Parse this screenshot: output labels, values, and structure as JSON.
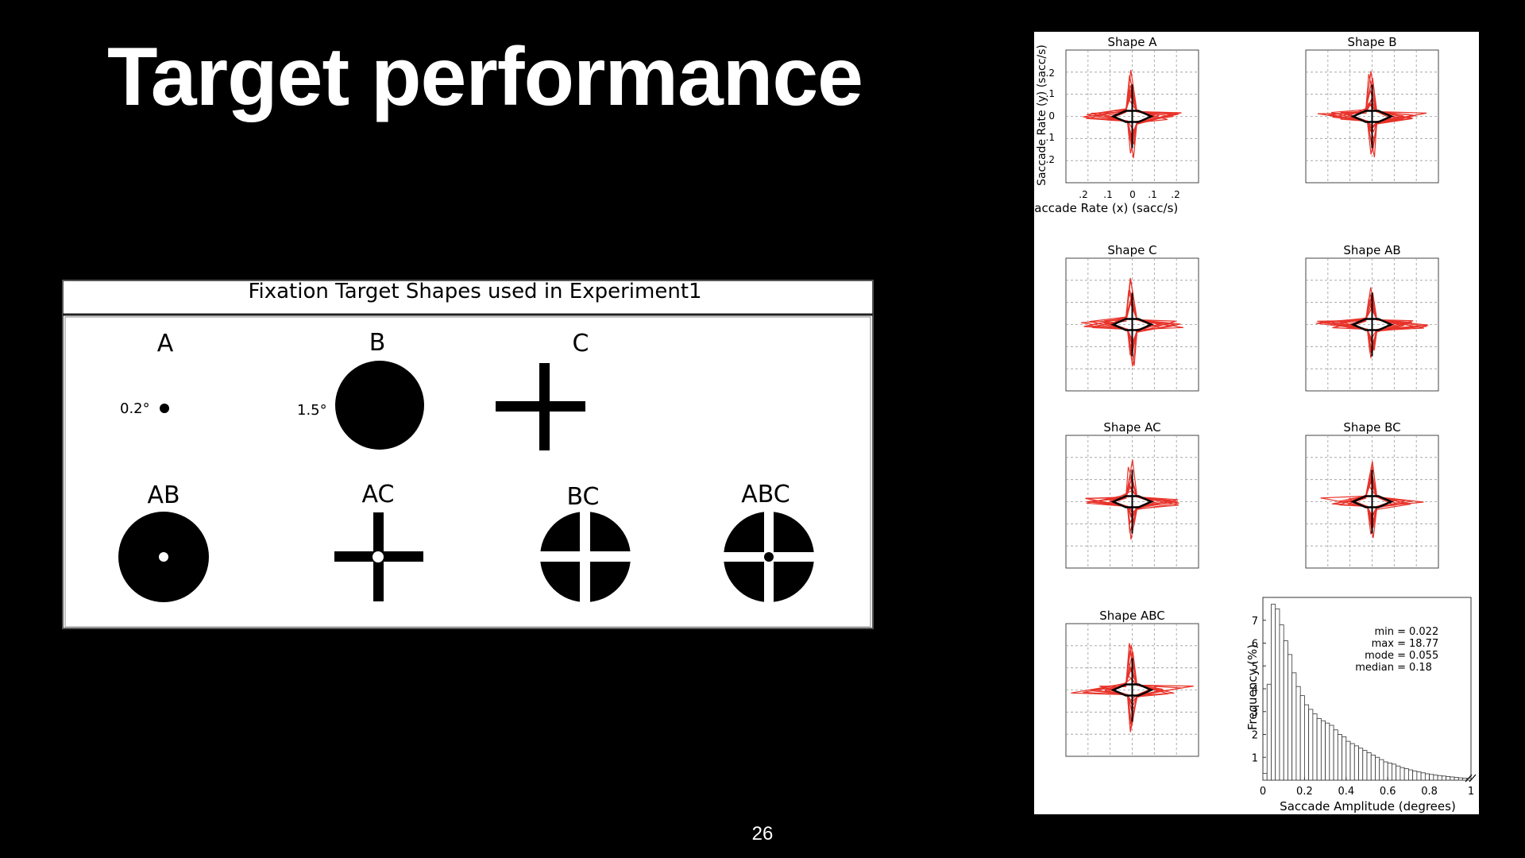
{
  "slide": {
    "title": "Target performance",
    "page_number": "26"
  },
  "shapes_figure": {
    "header": "Fixation Target Shapes used in Experiment1",
    "shapes": [
      {
        "label": "A",
        "annotation": "0.2°"
      },
      {
        "label": "B",
        "annotation": "1.5°"
      },
      {
        "label": "C"
      },
      {
        "label": "AB"
      },
      {
        "label": "AC"
      },
      {
        "label": "BC"
      },
      {
        "label": "ABC"
      }
    ]
  },
  "saccade_figure": {
    "subplots": [
      {
        "title": "Shape A"
      },
      {
        "title": "Shape B"
      },
      {
        "title": "Shape C"
      },
      {
        "title": "Shape AB"
      },
      {
        "title": "Shape AC"
      },
      {
        "title": "Shape BC"
      },
      {
        "title": "Shape ABC"
      }
    ],
    "ylabel": "Saccade Rate (y) (sacc/s)",
    "xlabel": "Saccade Rate (x) (sacc/s)",
    "yticks": [
      ".2",
      ".1",
      "0",
      ".1",
      ".2"
    ],
    "xticks": [
      ".2",
      ".1",
      "0",
      ".1",
      ".2"
    ],
    "trace_color": "#e8332a"
  },
  "chart_data": {
    "type": "bar",
    "xlabel": "Saccade Amplitude (degrees)",
    "ylabel": "Frequency (%)",
    "xlim": [
      0,
      1
    ],
    "ylim": [
      0,
      8
    ],
    "xticks": [
      "0",
      "0.2",
      "0.4",
      "0.6",
      "0.8",
      "1"
    ],
    "yticks": [
      "1",
      "2",
      "3",
      "4",
      "5",
      "6",
      "7"
    ],
    "bin_width": 0.02,
    "x": [
      0.01,
      0.03,
      0.05,
      0.07,
      0.09,
      0.11,
      0.13,
      0.15,
      0.17,
      0.19,
      0.21,
      0.23,
      0.25,
      0.27,
      0.29,
      0.31,
      0.33,
      0.35,
      0.37,
      0.39,
      0.41,
      0.43,
      0.45,
      0.47,
      0.49,
      0.51,
      0.53,
      0.55,
      0.57,
      0.59,
      0.61,
      0.63,
      0.65,
      0.67,
      0.69,
      0.71,
      0.73,
      0.75,
      0.77,
      0.79,
      0.81,
      0.83,
      0.85,
      0.87,
      0.89,
      0.91,
      0.93,
      0.95,
      0.97,
      0.99
    ],
    "values": [
      0.3,
      4.2,
      7.7,
      7.5,
      6.8,
      6.1,
      5.5,
      4.7,
      4.1,
      3.7,
      3.3,
      3.1,
      2.9,
      2.7,
      2.6,
      2.5,
      2.4,
      2.2,
      2.0,
      1.9,
      1.7,
      1.6,
      1.5,
      1.4,
      1.3,
      1.2,
      1.1,
      1.0,
      0.9,
      0.8,
      0.75,
      0.7,
      0.62,
      0.55,
      0.5,
      0.45,
      0.4,
      0.36,
      0.32,
      0.28,
      0.25,
      0.22,
      0.2,
      0.18,
      0.16,
      0.14,
      0.12,
      0.1,
      0.09,
      0.08
    ],
    "stats": [
      {
        "label": "min =",
        "value": "0.022"
      },
      {
        "label": "max =",
        "value": "18.77"
      },
      {
        "label": "mode =",
        "value": "0.055"
      },
      {
        "label": "median =",
        "value": "0.18"
      }
    ]
  }
}
